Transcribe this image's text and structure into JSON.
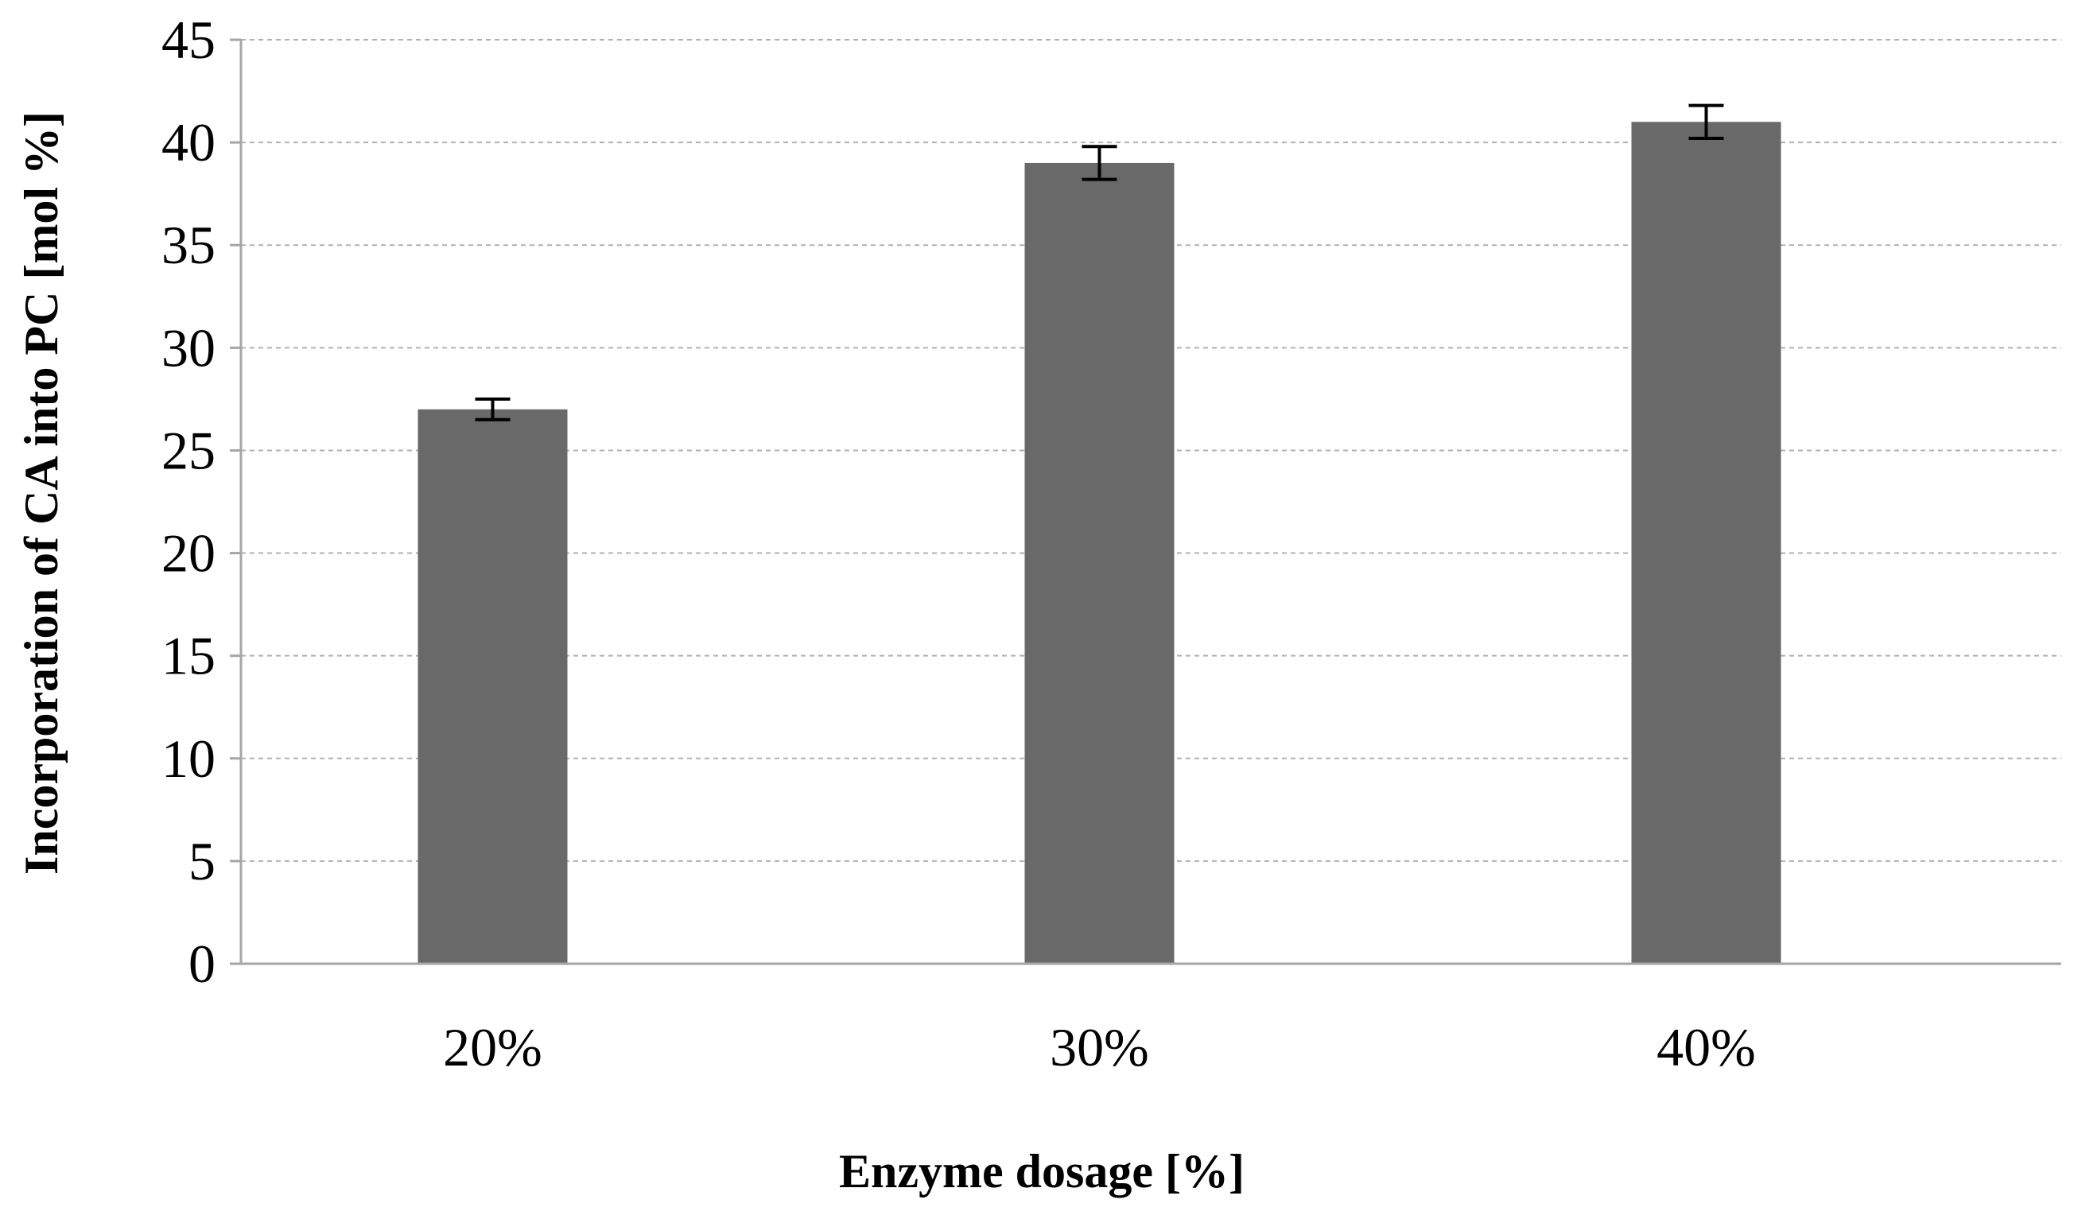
{
  "chart_data": {
    "type": "bar",
    "categories": [
      "20%",
      "30%",
      "40%"
    ],
    "series": [
      {
        "values": [
          27,
          39,
          41
        ],
        "error": [
          0.5,
          0.8,
          0.8
        ],
        "color": "#696969"
      }
    ],
    "xlabel": "Enzyme dosage [%]",
    "ylabel": "Incorporation of CA into PC [mol %]",
    "ylim": [
      0,
      45
    ],
    "yticks": [
      0,
      5,
      10,
      15,
      20,
      25,
      30,
      35,
      40,
      45
    ],
    "grid": true,
    "grid_style": "dashed",
    "legend": "none",
    "colors": {
      "bar": "#696969",
      "grid": "#b0b0b0",
      "axis": "#a6a6a6",
      "error_bar": "#000000"
    }
  }
}
